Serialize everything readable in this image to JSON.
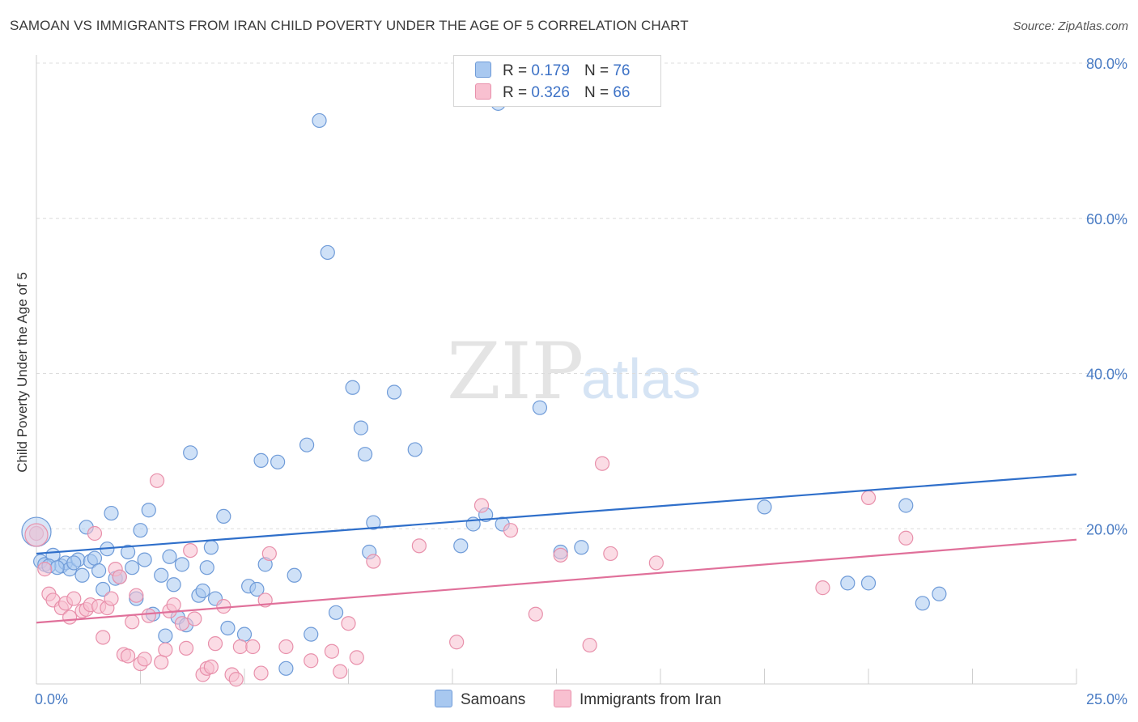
{
  "header": {
    "title": "SAMOAN VS IMMIGRANTS FROM IRAN CHILD POVERTY UNDER THE AGE OF 5 CORRELATION CHART",
    "source": "Source: ZipAtlas.com"
  },
  "watermark": {
    "zip": "ZIP",
    "atlas": "atlas"
  },
  "legend": {
    "rows": [
      {
        "r_label": "R =",
        "r_value": "0.179",
        "n_label": "N =",
        "n_value": "76",
        "color": "#a8c8f0",
        "border": "#6f9bd8"
      },
      {
        "r_label": "R =",
        "r_value": "0.326",
        "n_label": "N =",
        "n_value": "66",
        "color": "#f8c0d0",
        "border": "#e890ab"
      }
    ]
  },
  "bottom_legend": {
    "items": [
      {
        "label": "Samoans"
      },
      {
        "label": "Immigrants from Iran"
      }
    ]
  },
  "chart_data": {
    "type": "scatter",
    "title": "SAMOAN VS IMMIGRANTS FROM IRAN CHILD POVERTY UNDER THE AGE OF 5 CORRELATION CHART",
    "xlabel": "",
    "ylabel": "Child Poverty Under the Age of 5",
    "xlim": [
      0,
      25
    ],
    "ylim": [
      0,
      80
    ],
    "x_tick_labels": [
      "0.0%",
      "25.0%"
    ],
    "y_ticks": [
      20,
      40,
      60,
      80
    ],
    "y_tick_labels": [
      "20.0%",
      "40.0%",
      "60.0%",
      "80.0%"
    ],
    "grid": true,
    "legend_position": "top-center",
    "series": [
      {
        "name": "Samoans",
        "color": "#6f9bd8",
        "fill": "#a8c8f0",
        "line_color": "#2f6fca",
        "trend": {
          "x": [
            0,
            25
          ],
          "y": [
            16.8,
            27.0
          ]
        },
        "points": [
          {
            "x": 0.1,
            "y": 15.8
          },
          {
            "x": 0.2,
            "y": 15.4
          },
          {
            "x": 0.4,
            "y": 16.6
          },
          {
            "x": 0.6,
            "y": 15.2
          },
          {
            "x": 0.7,
            "y": 15.6
          },
          {
            "x": 0.8,
            "y": 14.8
          },
          {
            "x": 1.0,
            "y": 16.0
          },
          {
            "x": 1.1,
            "y": 14.0
          },
          {
            "x": 1.2,
            "y": 20.2
          },
          {
            "x": 1.3,
            "y": 15.8
          },
          {
            "x": 1.4,
            "y": 16.2
          },
          {
            "x": 1.5,
            "y": 14.6
          },
          {
            "x": 1.6,
            "y": 12.2
          },
          {
            "x": 1.7,
            "y": 17.4
          },
          {
            "x": 1.8,
            "y": 22.0
          },
          {
            "x": 1.9,
            "y": 13.6
          },
          {
            "x": 2.0,
            "y": 13.8
          },
          {
            "x": 2.2,
            "y": 17.0
          },
          {
            "x": 2.3,
            "y": 15.0
          },
          {
            "x": 2.4,
            "y": 11.0
          },
          {
            "x": 2.5,
            "y": 19.8
          },
          {
            "x": 2.6,
            "y": 16.0
          },
          {
            "x": 2.7,
            "y": 22.4
          },
          {
            "x": 2.8,
            "y": 9.0
          },
          {
            "x": 3.0,
            "y": 14.0
          },
          {
            "x": 3.1,
            "y": 6.2
          },
          {
            "x": 3.2,
            "y": 16.4
          },
          {
            "x": 3.3,
            "y": 12.8
          },
          {
            "x": 3.4,
            "y": 8.6
          },
          {
            "x": 3.5,
            "y": 15.4
          },
          {
            "x": 3.6,
            "y": 7.6
          },
          {
            "x": 3.7,
            "y": 29.8
          },
          {
            "x": 3.9,
            "y": 11.4
          },
          {
            "x": 4.0,
            "y": 12.0
          },
          {
            "x": 4.1,
            "y": 15.0
          },
          {
            "x": 4.2,
            "y": 17.6
          },
          {
            "x": 4.3,
            "y": 11.0
          },
          {
            "x": 4.5,
            "y": 21.6
          },
          {
            "x": 4.6,
            "y": 7.2
          },
          {
            "x": 5.0,
            "y": 6.4
          },
          {
            "x": 5.1,
            "y": 12.6
          },
          {
            "x": 5.3,
            "y": 12.2
          },
          {
            "x": 5.4,
            "y": 28.8
          },
          {
            "x": 5.5,
            "y": 15.4
          },
          {
            "x": 5.8,
            "y": 28.6
          },
          {
            "x": 6.0,
            "y": 2.0
          },
          {
            "x": 6.2,
            "y": 14.0
          },
          {
            "x": 6.5,
            "y": 30.8
          },
          {
            "x": 6.6,
            "y": 6.4
          },
          {
            "x": 6.8,
            "y": 72.6
          },
          {
            "x": 7.0,
            "y": 55.6
          },
          {
            "x": 7.2,
            "y": 9.2
          },
          {
            "x": 7.6,
            "y": 38.2
          },
          {
            "x": 7.8,
            "y": 33.0
          },
          {
            "x": 7.9,
            "y": 29.6
          },
          {
            "x": 8.0,
            "y": 17.0
          },
          {
            "x": 8.1,
            "y": 20.8
          },
          {
            "x": 8.6,
            "y": 37.6
          },
          {
            "x": 9.1,
            "y": 30.2
          },
          {
            "x": 10.2,
            "y": 17.8
          },
          {
            "x": 10.5,
            "y": 20.6
          },
          {
            "x": 10.8,
            "y": 21.8
          },
          {
            "x": 11.2,
            "y": 20.6
          },
          {
            "x": 11.1,
            "y": 74.8
          },
          {
            "x": 12.1,
            "y": 35.6
          },
          {
            "x": 12.6,
            "y": 17.0
          },
          {
            "x": 13.1,
            "y": 17.6
          },
          {
            "x": 17.5,
            "y": 22.8
          },
          {
            "x": 19.5,
            "y": 13.0
          },
          {
            "x": 20.0,
            "y": 13.0
          },
          {
            "x": 20.9,
            "y": 23.0
          },
          {
            "x": 21.3,
            "y": 10.4
          },
          {
            "x": 21.7,
            "y": 11.6
          },
          {
            "x": 0.3,
            "y": 15.2
          },
          {
            "x": 0.5,
            "y": 15.0
          },
          {
            "x": 0.9,
            "y": 15.6
          }
        ]
      },
      {
        "name": "Immigrants from Iran",
        "color": "#e890ab",
        "fill": "#f8c0d0",
        "line_color": "#e0709a",
        "trend": {
          "x": [
            0,
            25
          ],
          "y": [
            7.9,
            18.6
          ]
        },
        "points": [
          {
            "x": 0.0,
            "y": 19.4
          },
          {
            "x": 0.2,
            "y": 14.8
          },
          {
            "x": 0.3,
            "y": 11.6
          },
          {
            "x": 0.4,
            "y": 10.8
          },
          {
            "x": 0.6,
            "y": 9.8
          },
          {
            "x": 0.7,
            "y": 10.4
          },
          {
            "x": 0.8,
            "y": 8.6
          },
          {
            "x": 0.9,
            "y": 11.0
          },
          {
            "x": 1.1,
            "y": 9.4
          },
          {
            "x": 1.2,
            "y": 9.6
          },
          {
            "x": 1.3,
            "y": 10.2
          },
          {
            "x": 1.4,
            "y": 19.4
          },
          {
            "x": 1.5,
            "y": 10.0
          },
          {
            "x": 1.6,
            "y": 6.0
          },
          {
            "x": 1.7,
            "y": 9.8
          },
          {
            "x": 1.8,
            "y": 11.0
          },
          {
            "x": 1.9,
            "y": 14.8
          },
          {
            "x": 2.0,
            "y": 13.8
          },
          {
            "x": 2.1,
            "y": 3.8
          },
          {
            "x": 2.2,
            "y": 3.6
          },
          {
            "x": 2.3,
            "y": 8.0
          },
          {
            "x": 2.4,
            "y": 11.4
          },
          {
            "x": 2.5,
            "y": 2.6
          },
          {
            "x": 2.6,
            "y": 3.2
          },
          {
            "x": 2.7,
            "y": 8.8
          },
          {
            "x": 2.9,
            "y": 26.2
          },
          {
            "x": 3.0,
            "y": 2.8
          },
          {
            "x": 3.1,
            "y": 4.4
          },
          {
            "x": 3.2,
            "y": 9.4
          },
          {
            "x": 3.3,
            "y": 10.2
          },
          {
            "x": 3.5,
            "y": 7.8
          },
          {
            "x": 3.6,
            "y": 4.6
          },
          {
            "x": 3.7,
            "y": 17.2
          },
          {
            "x": 3.8,
            "y": 8.4
          },
          {
            "x": 4.0,
            "y": 1.2
          },
          {
            "x": 4.1,
            "y": 2.0
          },
          {
            "x": 4.2,
            "y": 2.2
          },
          {
            "x": 4.3,
            "y": 5.2
          },
          {
            "x": 4.5,
            "y": 10.0
          },
          {
            "x": 4.7,
            "y": 1.2
          },
          {
            "x": 4.8,
            "y": 0.6
          },
          {
            "x": 4.9,
            "y": 4.8
          },
          {
            "x": 5.2,
            "y": 4.8
          },
          {
            "x": 5.4,
            "y": 1.4
          },
          {
            "x": 5.5,
            "y": 10.8
          },
          {
            "x": 5.6,
            "y": 16.8
          },
          {
            "x": 6.0,
            "y": 4.8
          },
          {
            "x": 6.6,
            "y": 3.0
          },
          {
            "x": 7.1,
            "y": 4.2
          },
          {
            "x": 7.3,
            "y": 1.6
          },
          {
            "x": 7.5,
            "y": 7.8
          },
          {
            "x": 7.7,
            "y": 3.4
          },
          {
            "x": 8.1,
            "y": 15.8
          },
          {
            "x": 9.2,
            "y": 17.8
          },
          {
            "x": 10.1,
            "y": 5.4
          },
          {
            "x": 10.7,
            "y": 23.0
          },
          {
            "x": 11.4,
            "y": 19.8
          },
          {
            "x": 12.0,
            "y": 9.0
          },
          {
            "x": 12.6,
            "y": 16.6
          },
          {
            "x": 13.3,
            "y": 5.0
          },
          {
            "x": 13.6,
            "y": 28.4
          },
          {
            "x": 13.8,
            "y": 16.8
          },
          {
            "x": 14.9,
            "y": 15.6
          },
          {
            "x": 18.9,
            "y": 12.4
          },
          {
            "x": 20.0,
            "y": 24.0
          },
          {
            "x": 20.9,
            "y": 18.8
          }
        ]
      }
    ]
  }
}
